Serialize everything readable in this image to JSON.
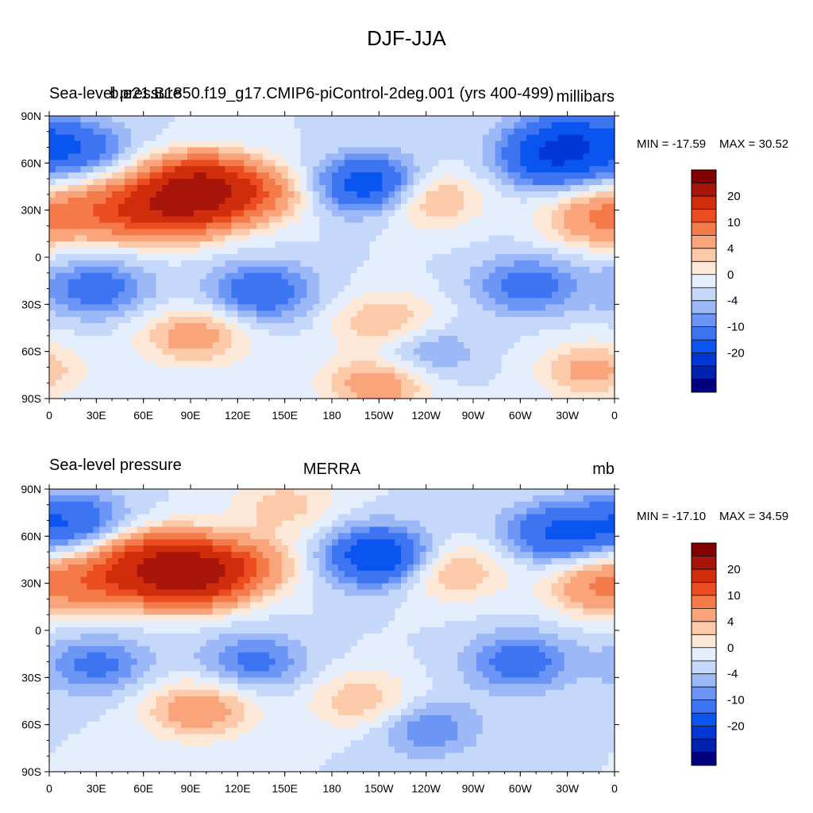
{
  "title": "DJF-JJA",
  "chart_data": [
    {
      "type": "heatmap",
      "variable_label": "Sea-level pressure",
      "case_label": "b.e21.B1850.f19_g17.CMIP6-piControl-2deg.001 (yrs 400-499)",
      "units": "millibars",
      "min_label": "MIN = -17.59",
      "max_label": "MAX =  30.52",
      "min": -17.59,
      "max": 30.52,
      "contour_levels": [
        -30,
        -20,
        -15,
        -10,
        -6,
        -4,
        -2,
        0,
        2,
        4,
        6,
        10,
        15,
        20,
        30
      ],
      "colorbar_labels": [
        "20",
        "10",
        "4",
        "0",
        "-4",
        "-10",
        "-20"
      ],
      "x_ticks": [
        "0",
        "30E",
        "60E",
        "90E",
        "120E",
        "150E",
        "180",
        "150W",
        "120W",
        "90W",
        "60W",
        "30W",
        "0"
      ],
      "y_ticks": [
        "90N",
        "60N",
        "30N",
        "0",
        "30S",
        "60S",
        "90S"
      ],
      "xlim": [
        0,
        360
      ],
      "ylim": [
        -90,
        90
      ],
      "anomalies": [
        {
          "lon": 95,
          "lat": 45,
          "value": 28
        },
        {
          "lon": 80,
          "lat": 30,
          "value": 18
        },
        {
          "lon": 40,
          "lat": 30,
          "value": 12
        },
        {
          "lon": 130,
          "lat": 40,
          "value": 10
        },
        {
          "lon": 240,
          "lat": 38,
          "value": 8
        },
        {
          "lon": 350,
          "lat": 25,
          "value": 10
        },
        {
          "lon": 205,
          "lat": 46,
          "value": -14
        },
        {
          "lon": 320,
          "lat": 62,
          "value": -12
        },
        {
          "lon": 15,
          "lat": 70,
          "value": -9
        },
        {
          "lon": 330,
          "lat": 78,
          "value": -8
        },
        {
          "lon": 30,
          "lat": -20,
          "value": -8
        },
        {
          "lon": 135,
          "lat": -22,
          "value": -9
        },
        {
          "lon": 305,
          "lat": -18,
          "value": -8
        },
        {
          "lon": 92,
          "lat": -50,
          "value": 8
        },
        {
          "lon": 215,
          "lat": -42,
          "value": 7
        },
        {
          "lon": 210,
          "lat": -80,
          "value": 9
        },
        {
          "lon": 345,
          "lat": -72,
          "value": 7
        },
        {
          "lon": 235,
          "lat": -60,
          "value": -6
        }
      ]
    },
    {
      "type": "heatmap",
      "variable_label": "Sea-level pressure",
      "case_label": "MERRA",
      "units": "mb",
      "min_label": "MIN = -17.10",
      "max_label": "MAX =  34.59",
      "min": -17.1,
      "max": 34.59,
      "contour_levels": [
        -30,
        -20,
        -15,
        -10,
        -6,
        -4,
        -2,
        0,
        2,
        4,
        6,
        10,
        15,
        20,
        30
      ],
      "colorbar_labels": [
        "20",
        "10",
        "4",
        "0",
        "-4",
        "-10",
        "-20"
      ],
      "x_ticks": [
        "0",
        "30E",
        "60E",
        "90E",
        "120E",
        "150E",
        "180",
        "150W",
        "120W",
        "90W",
        "60W",
        "30W",
        "0"
      ],
      "y_ticks": [
        "90N",
        "60N",
        "30N",
        "0",
        "30S",
        "60S",
        "90S"
      ],
      "xlim": [
        0,
        360
      ],
      "ylim": [
        -90,
        90
      ],
      "anomalies": [
        {
          "lon": 90,
          "lat": 35,
          "value": 30
        },
        {
          "lon": 70,
          "lat": 45,
          "value": 16
        },
        {
          "lon": 40,
          "lat": 32,
          "value": 12
        },
        {
          "lon": 125,
          "lat": 42,
          "value": 9
        },
        {
          "lon": 255,
          "lat": 38,
          "value": 7
        },
        {
          "lon": 352,
          "lat": 28,
          "value": 10
        },
        {
          "lon": 150,
          "lat": 80,
          "value": 5
        },
        {
          "lon": 210,
          "lat": 47,
          "value": -15
        },
        {
          "lon": 325,
          "lat": 62,
          "value": -11
        },
        {
          "lon": 15,
          "lat": 70,
          "value": -9
        },
        {
          "lon": 30,
          "lat": -22,
          "value": -7
        },
        {
          "lon": 130,
          "lat": -20,
          "value": -7
        },
        {
          "lon": 300,
          "lat": -20,
          "value": -8
        },
        {
          "lon": 95,
          "lat": -50,
          "value": 9
        },
        {
          "lon": 200,
          "lat": -45,
          "value": 6
        },
        {
          "lon": 240,
          "lat": -62,
          "value": -6
        }
      ]
    }
  ]
}
